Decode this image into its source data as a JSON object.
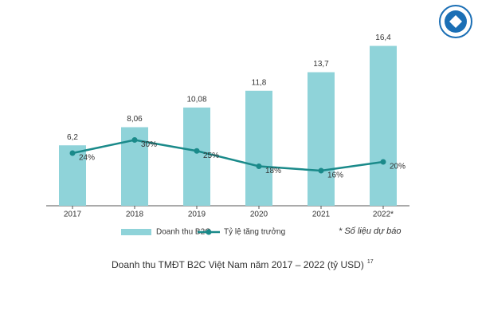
{
  "chart_data": {
    "type": "bar-line",
    "categories": [
      "2017",
      "2018",
      "2019",
      "2020",
      "2021",
      "2022*"
    ],
    "series": [
      {
        "name": "Doanh thu B2C",
        "type": "bar",
        "color": "#8fd3d9",
        "values": [
          6.2,
          8.06,
          10.08,
          11.8,
          13.7,
          16.4
        ],
        "value_labels": [
          "6,2",
          "8,06",
          "10,08",
          "11,8",
          "13,7",
          "16,4"
        ]
      },
      {
        "name": "Tỷ lệ tăng trưởng",
        "type": "line",
        "axis": "y2",
        "color": "#1a8a8a",
        "values": [
          24,
          30,
          25,
          18,
          16,
          20
        ],
        "value_labels": [
          "24%",
          "30%",
          "25%",
          "18%",
          "16%",
          "20%"
        ]
      }
    ],
    "ylim": [
      0,
      18
    ],
    "y2lim": [
      0,
      80
    ],
    "note": "* Số liệu dự báo",
    "caption": "Doanh thu TMĐT B2C Việt Nam năm 2017 – 2022 (tỷ USD)",
    "caption_ref": "17"
  }
}
